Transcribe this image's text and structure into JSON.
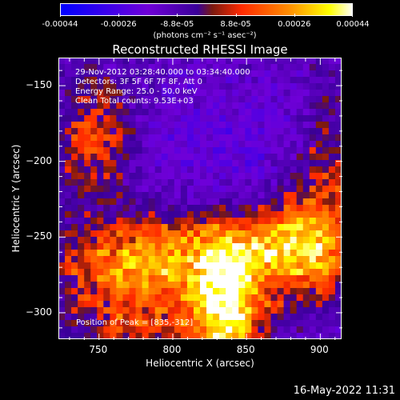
{
  "colorbar": {
    "labels": [
      "-0.00044",
      "-0.00026",
      "-8.8e-05",
      "8.8e-05",
      "0.00026",
      "0.00044"
    ],
    "unit": "(photons cm⁻² s⁻¹ asec⁻²)",
    "range": [
      -0.00044,
      0.00044
    ],
    "colors": [
      "#0000ff",
      "#6f00d8",
      "#3a0098",
      "#7a1a10",
      "#ff2a00",
      "#ff8c00",
      "#ffff00",
      "#ffffff"
    ]
  },
  "chart_data": {
    "type": "heatmap",
    "title": "Reconstructed RHESSI Image",
    "xlabel": "Heliocentric X (arcsec)",
    "ylabel": "Heliocentric Y (arcsec)",
    "xlim": [
      723,
      915
    ],
    "ylim": [
      -318,
      -132
    ],
    "x_ticks": [
      750,
      800,
      850,
      900
    ],
    "y_ticks": [
      -150,
      -200,
      -250,
      -300
    ],
    "peak": [
      835,
      -312
    ],
    "annotations": {
      "time": "29-Nov-2012 03:28:40.000 to 03:34:40.000",
      "detectors": "Detectors: 3F 5F 6F 7F 8F, Att 0",
      "energy": "Energy Range: 25.0 - 50.0 keV",
      "method": "Clean     Total counts: 9.53E+03",
      "peak_label": "Position of Peak = [835,-312]"
    },
    "grid": false
  },
  "footer": {
    "timestamp": "16-May-2022 11:31"
  }
}
